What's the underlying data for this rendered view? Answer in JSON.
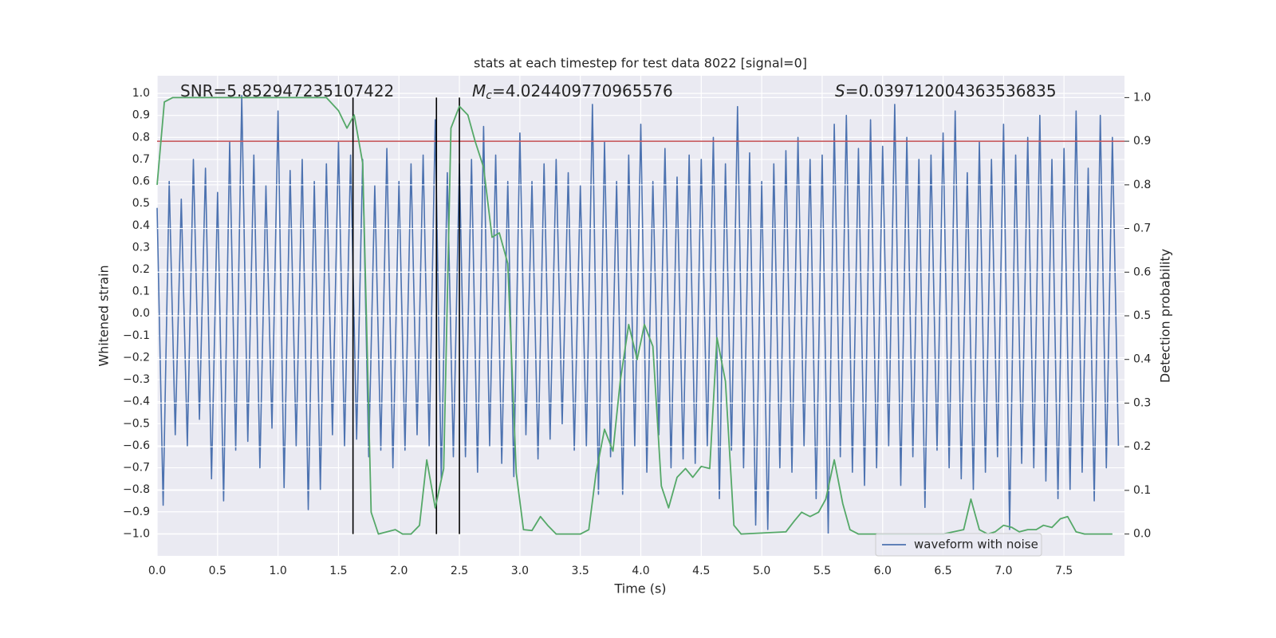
{
  "chart_data": {
    "type": "line",
    "title": "stats at each timestep for test data 8022 [signal=0]",
    "xlabel": "Time (s)",
    "ylabel": "Whitened strain",
    "y2label": "Detection probability",
    "annotations": [
      {
        "text": "SNR=5.852947235107422"
      },
      {
        "symbol": "M",
        "subscript": "c",
        "text": "=4.024409770965576"
      },
      {
        "symbol": "S",
        "text": "=0.039712004363536835"
      }
    ],
    "xlim": [
      0,
      8
    ],
    "ylim": [
      -1.1,
      1.08
    ],
    "y2lim": [
      -0.05,
      1.05
    ],
    "xticks": [
      {
        "value": 0,
        "label": "0.0"
      },
      0.5,
      {
        "value": 1,
        "label": "1.0"
      },
      1.5,
      {
        "value": 2,
        "label": "2.0"
      },
      2.5,
      {
        "value": 3,
        "label": "3.0"
      },
      3.5,
      {
        "value": 4,
        "label": "4.0"
      },
      4.5,
      {
        "value": 5,
        "label": "5.0"
      },
      5.5,
      {
        "value": 6,
        "label": "6.0"
      },
      6.5,
      {
        "value": 7,
        "label": "7.0"
      },
      7.5
    ],
    "yticks": [
      {
        "value": -1,
        "label": "−1.0"
      },
      {
        "value": -0.9,
        "label": "−0.9"
      },
      {
        "value": -0.8,
        "label": "−0.8"
      },
      {
        "value": -0.7,
        "label": "−0.7"
      },
      {
        "value": -0.6,
        "label": "−0.6"
      },
      {
        "value": -0.5,
        "label": "−0.5"
      },
      {
        "value": -0.4,
        "label": "−0.4"
      },
      {
        "value": -0.3,
        "label": "−0.3"
      },
      {
        "value": -0.2,
        "label": "−0.2"
      },
      {
        "value": -0.1,
        "label": "−0.1"
      },
      {
        "value": 0,
        "label": "0.0"
      },
      0.1,
      0.2,
      0.3,
      0.4,
      0.5,
      0.6,
      0.7,
      0.8,
      0.9,
      {
        "value": 1,
        "label": "1.0"
      }
    ],
    "y2ticks": [
      {
        "value": 0,
        "label": "0.0"
      },
      0.1,
      0.2,
      0.3,
      0.4,
      0.5,
      0.6,
      0.7,
      0.8,
      0.9,
      {
        "value": 1,
        "label": "1.0"
      }
    ],
    "grid": true,
    "legend": "lower right",
    "series": [
      {
        "name": "waveform with noise",
        "color": "#4c72b0",
        "x": [
          0,
          0.05,
          0.1,
          0.15,
          0.2,
          0.25,
          0.3,
          0.35,
          0.4,
          0.45,
          0.5,
          0.55,
          0.6,
          0.65,
          0.7,
          0.75,
          0.8,
          0.85,
          0.9,
          0.95,
          1,
          1.05,
          1.1,
          1.15,
          1.2,
          1.25,
          1.3,
          1.35,
          1.4,
          1.45,
          1.5,
          1.55,
          1.6,
          1.65,
          1.7,
          1.75,
          1.8,
          1.85,
          1.9,
          1.95,
          2,
          2.05,
          2.1,
          2.15,
          2.2,
          2.25,
          2.3,
          2.35,
          2.4,
          2.45,
          2.5,
          2.55,
          2.6,
          2.65,
          2.7,
          2.75,
          2.8,
          2.85,
          2.9,
          2.95,
          3,
          3.05,
          3.1,
          3.15,
          3.2,
          3.25,
          3.3,
          3.35,
          3.4,
          3.45,
          3.5,
          3.55,
          3.6,
          3.65,
          3.7,
          3.75,
          3.8,
          3.85,
          3.9,
          3.95,
          4,
          4.05,
          4.1,
          4.15,
          4.2,
          4.25,
          4.3,
          4.35,
          4.4,
          4.45,
          4.5,
          4.55,
          4.6,
          4.65,
          4.7,
          4.75,
          4.8,
          4.85,
          4.9,
          4.95,
          5,
          5.05,
          5.1,
          5.15,
          5.2,
          5.25,
          5.3,
          5.35,
          5.4,
          5.45,
          5.5,
          5.55,
          5.6,
          5.65,
          5.7,
          5.75,
          5.8,
          5.85,
          5.9,
          5.95,
          6,
          6.05,
          6.1,
          6.15,
          6.2,
          6.25,
          6.3,
          6.35,
          6.4,
          6.45,
          6.5,
          6.55,
          6.6,
          6.65,
          6.7,
          6.75,
          6.8,
          6.85,
          6.9,
          6.95,
          7,
          7.05,
          7.1,
          7.15,
          7.2,
          7.25,
          7.3,
          7.35,
          7.4,
          7.45,
          7.5,
          7.55,
          7.6,
          7.65,
          7.7,
          7.75,
          7.8,
          7.85,
          7.9,
          7.95
        ],
        "values": [
          0.48,
          -0.87,
          0.6,
          -0.55,
          0.52,
          -0.6,
          0.7,
          -0.48,
          0.66,
          -0.75,
          0.55,
          -0.85,
          0.78,
          -0.62,
          0.99,
          -0.58,
          0.72,
          -0.7,
          0.58,
          -0.52,
          0.92,
          -0.79,
          0.65,
          -0.6,
          0.7,
          -0.89,
          0.6,
          -0.8,
          0.68,
          -0.55,
          0.78,
          -0.6,
          0.72,
          -0.57,
          0.7,
          -0.65,
          0.58,
          -0.62,
          0.75,
          -0.7,
          0.6,
          -0.62,
          0.68,
          -0.55,
          0.72,
          -0.6,
          0.88,
          -0.75,
          0.64,
          -0.65,
          0.68,
          -0.65,
          0.7,
          -0.72,
          0.85,
          -0.6,
          0.72,
          -0.68,
          0.6,
          -0.74,
          0.82,
          -0.55,
          0.6,
          -0.66,
          0.68,
          -0.57,
          0.7,
          -0.5,
          0.64,
          -0.62,
          0.58,
          -0.6,
          0.95,
          -0.82,
          0.78,
          -0.65,
          0.6,
          -0.82,
          0.72,
          -0.6,
          0.86,
          -0.72,
          0.6,
          -0.55,
          0.75,
          -0.7,
          0.62,
          -0.66,
          0.72,
          -0.68,
          0.7,
          -0.6,
          0.8,
          -0.84,
          0.68,
          -0.62,
          0.94,
          -0.7,
          0.73,
          -0.96,
          0.6,
          -0.98,
          0.68,
          -0.7,
          0.74,
          -0.72,
          0.8,
          -0.6,
          0.7,
          -0.84,
          0.72,
          -1.0,
          0.86,
          -0.65,
          0.9,
          -0.72,
          0.75,
          -0.78,
          0.88,
          -0.7,
          0.76,
          -0.6,
          0.95,
          -0.78,
          0.8,
          -0.65,
          0.7,
          -0.88,
          0.72,
          -0.62,
          0.82,
          -0.7,
          0.92,
          -0.75,
          0.64,
          -0.8,
          0.78,
          -0.72,
          0.7,
          -0.65,
          0.86,
          -0.98,
          0.72,
          -0.68,
          0.8,
          -0.7,
          0.9,
          -0.76,
          0.7,
          -0.84,
          0.75,
          -0.8,
          0.92,
          -0.72,
          0.66,
          -0.85,
          0.9,
          -0.7,
          0.8,
          -0.6
        ]
      },
      {
        "color": "#55a868",
        "axis": "y2",
        "x": [
          0,
          0.06,
          0.13,
          0.5,
          1,
          1.4,
          1.5,
          1.57,
          1.63,
          1.7,
          1.77,
          1.83,
          1.9,
          1.97,
          2.03,
          2.1,
          2.17,
          2.23,
          2.3,
          2.37,
          2.43,
          2.5,
          2.57,
          2.63,
          2.7,
          2.77,
          2.83,
          2.9,
          2.97,
          3.03,
          3.1,
          3.17,
          3.23,
          3.3,
          3.5,
          3.57,
          3.63,
          3.7,
          3.77,
          3.83,
          3.9,
          3.97,
          4.03,
          4.1,
          4.17,
          4.23,
          4.3,
          4.37,
          4.43,
          4.5,
          4.57,
          4.63,
          4.7,
          4.77,
          4.83,
          5.2,
          5.27,
          5.33,
          5.4,
          5.47,
          5.53,
          5.6,
          5.67,
          5.73,
          5.8,
          6.5,
          6.67,
          6.73,
          6.8,
          6.87,
          6.93,
          7,
          7.07,
          7.13,
          7.2,
          7.27,
          7.33,
          7.4,
          7.47,
          7.53,
          7.6,
          7.67,
          7.9
        ],
        "values": [
          0.8,
          0.99,
          1.0,
          1.0,
          1.0,
          1.0,
          0.97,
          0.93,
          0.96,
          0.85,
          0.05,
          0.0,
          0.005,
          0.01,
          0.0,
          0.0,
          0.02,
          0.17,
          0.06,
          0.15,
          0.93,
          0.98,
          0.96,
          0.9,
          0.84,
          0.68,
          0.69,
          0.62,
          0.14,
          0.01,
          0.008,
          0.04,
          0.02,
          0.0,
          0.0,
          0.01,
          0.14,
          0.24,
          0.19,
          0.35,
          0.48,
          0.4,
          0.48,
          0.43,
          0.11,
          0.06,
          0.13,
          0.15,
          0.13,
          0.155,
          0.15,
          0.45,
          0.35,
          0.02,
          0.0,
          0.005,
          0.03,
          0.05,
          0.04,
          0.05,
          0.08,
          0.17,
          0.07,
          0.01,
          0.0,
          0.0,
          0.01,
          0.08,
          0.01,
          0.0,
          0.005,
          0.02,
          0.015,
          0.005,
          0.01,
          0.01,
          0.02,
          0.015,
          0.035,
          0.04,
          0.005,
          0.0,
          0.0
        ]
      }
    ],
    "hlines": [
      {
        "value": 0.9,
        "axis": "y2",
        "color": "#c44e52"
      }
    ],
    "vlines": {
      "x": [
        1.62,
        2.31,
        2.5
      ],
      "ymin": 0,
      "ymax": 1,
      "axis": "y2",
      "color": "#000000"
    }
  }
}
